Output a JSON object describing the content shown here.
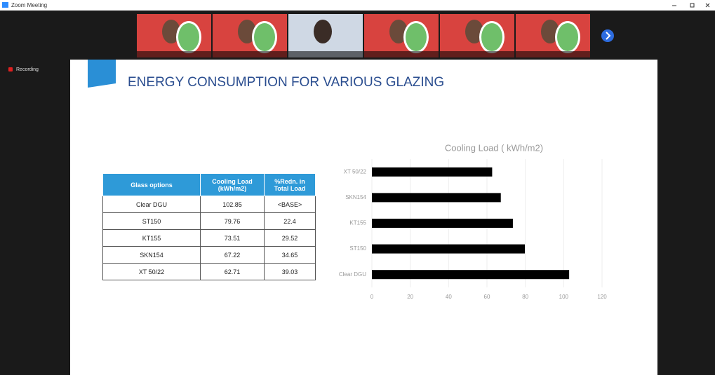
{
  "window": {
    "title": "Zoom Meeting",
    "recording": "Recording"
  },
  "slide": {
    "title": "ENERGY CONSUMPTION FOR VARIOUS GLAZING",
    "table": {
      "header": [
        "Glass options",
        "Cooling Load (kWh/m2)",
        "%Redn. in Total Load"
      ],
      "rows": [
        [
          "Clear DGU",
          "102.85",
          "<BASE>"
        ],
        [
          "ST150",
          "79.76",
          "22.4"
        ],
        [
          "KT155",
          "73.51",
          "29.52"
        ],
        [
          "SKN154",
          "67.22",
          "34.65"
        ],
        [
          "XT 50/22",
          "62.71",
          "39.03"
        ]
      ]
    },
    "chart": {
      "type": "bar",
      "orientation": "horizontal",
      "title": "Cooling Load ( kWh/m2)",
      "categories": [
        "XT 50/22",
        "SKN154",
        "KT155",
        "ST150",
        "Clear DGU"
      ],
      "values": [
        62.71,
        67.22,
        73.51,
        79.76,
        102.85
      ],
      "color": "#000000",
      "xlim": [
        0,
        120
      ],
      "xticks": [
        0,
        20,
        40,
        60,
        80,
        100,
        120
      ],
      "grid": true
    }
  }
}
